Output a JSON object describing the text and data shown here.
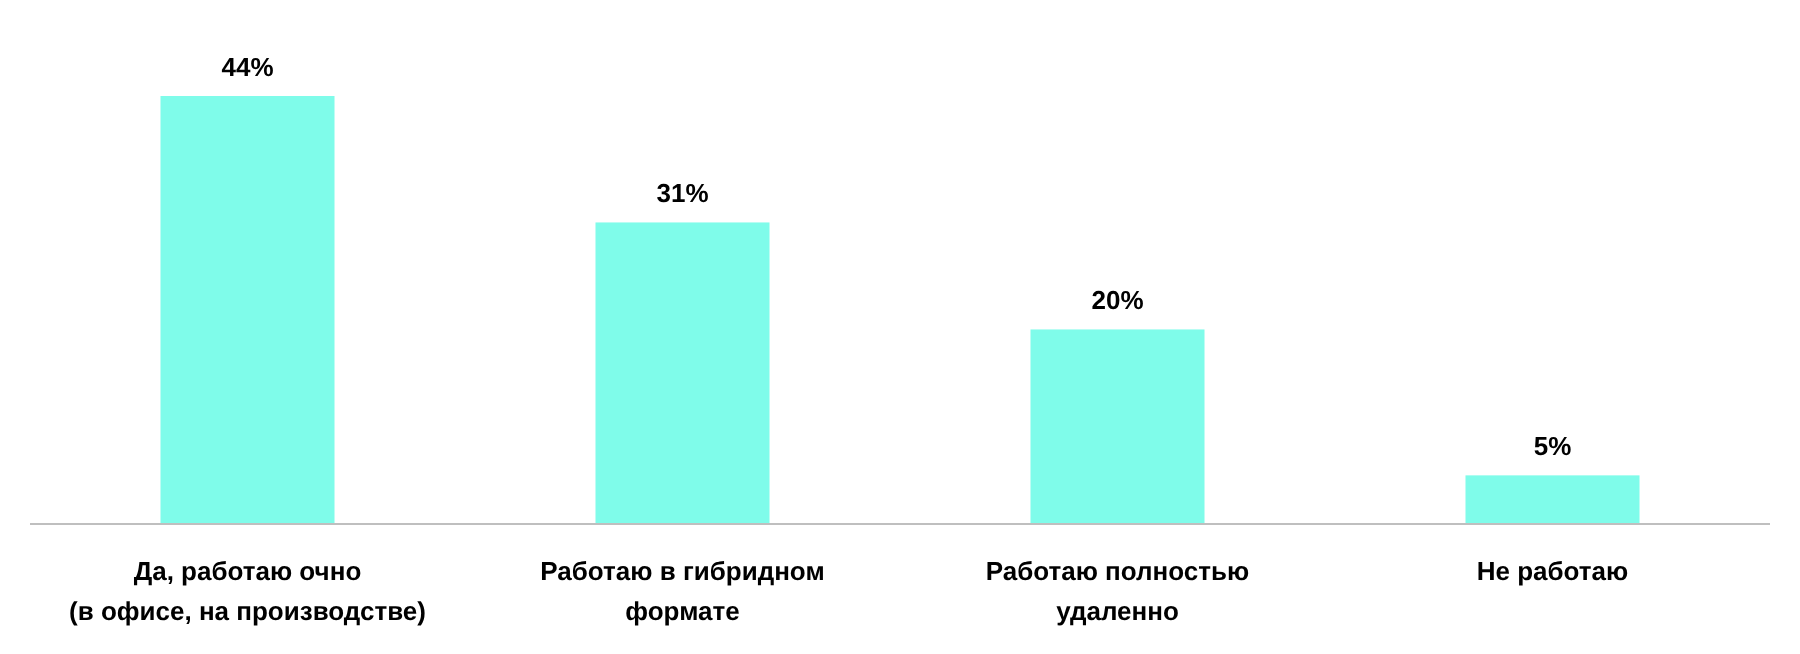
{
  "chart_data": {
    "type": "bar",
    "categories": [
      "Да, работаю очно\n(в офисе, на производстве)",
      "Работаю в гибридном\nформате",
      "Работаю полностью\nудаленно",
      "Не работаю"
    ],
    "values": [
      44,
      31,
      20,
      5
    ],
    "value_labels": [
      "44%",
      "31%",
      "20%",
      "5%"
    ],
    "color": "#7ffcea"
  }
}
